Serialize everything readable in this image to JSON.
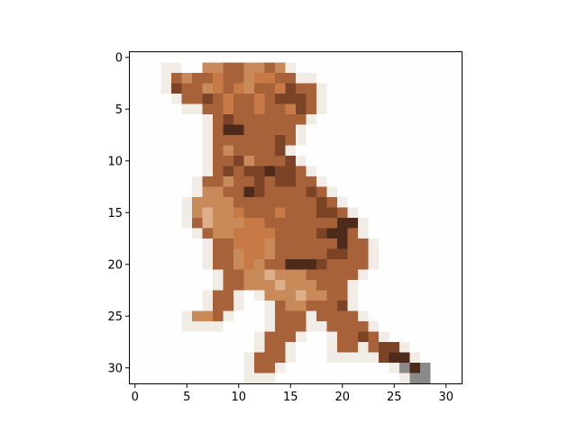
{
  "figure": {
    "background": "#ffffff",
    "frame_color": "#000000"
  },
  "image": {
    "description_hidden": "",
    "rows": 32,
    "cols": 32,
    "palette": {
      "background": "#fefefe",
      "halo": "#f1ece6",
      "tan_light": "#dcae8a",
      "tan": "#c98a5a",
      "orange": "#c87a46",
      "brown": "#a8623a",
      "brown_dark": "#7c4426",
      "dark": "#4e2a1a",
      "gray_tail": "#8a8a8a"
    }
  },
  "axes": {
    "x_ticks": [
      "0",
      "5",
      "10",
      "15",
      "20",
      "25",
      "30"
    ],
    "y_ticks": [
      "0",
      "5",
      "10",
      "15",
      "20",
      "25",
      "30"
    ]
  }
}
